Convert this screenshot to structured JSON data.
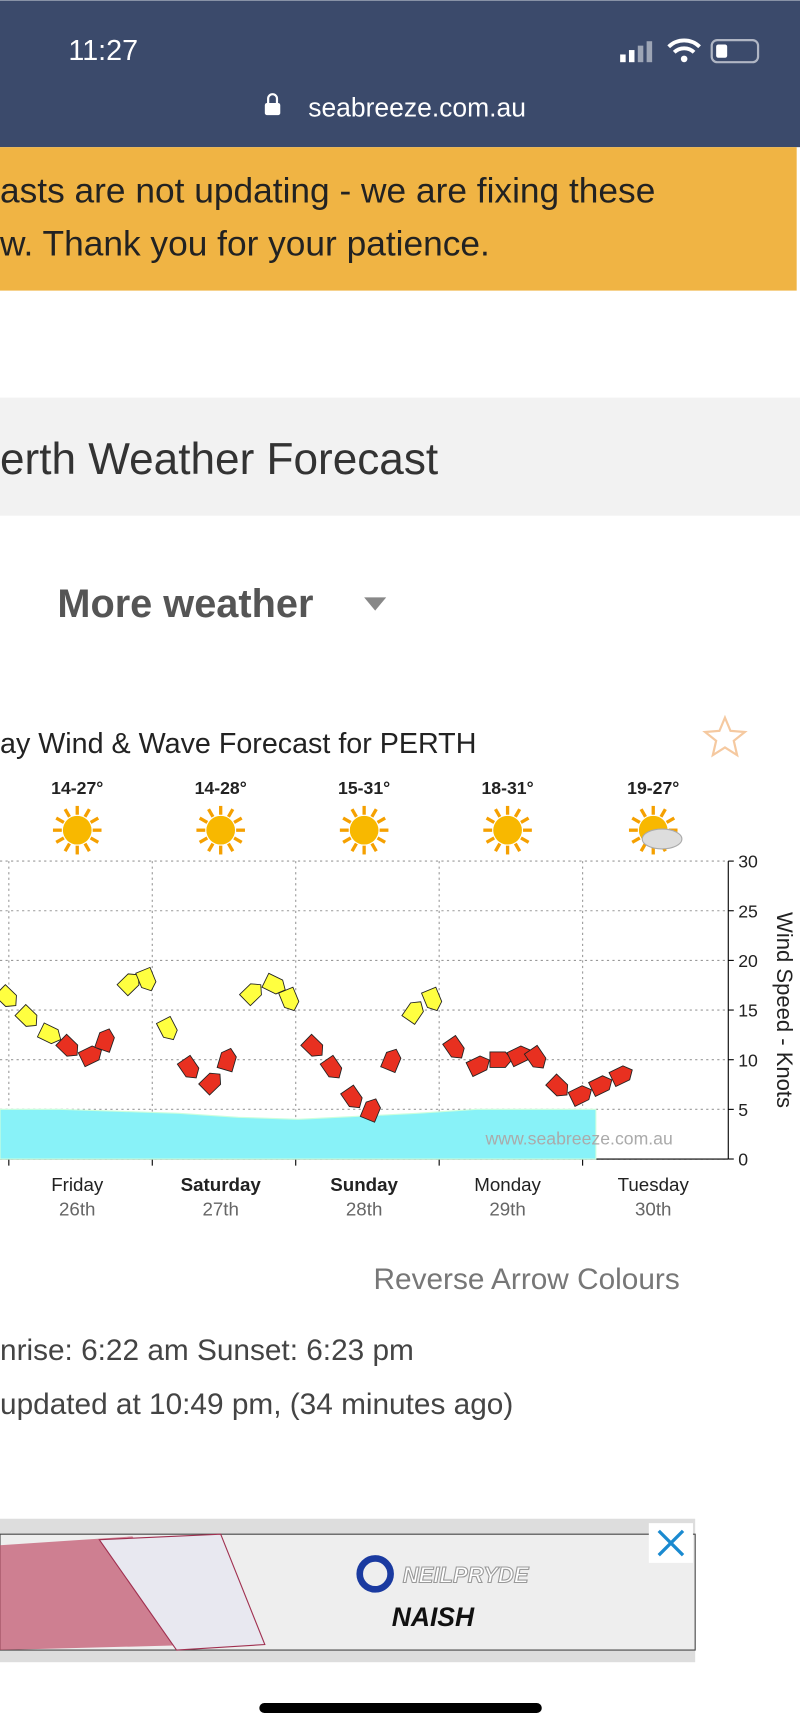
{
  "status_bar": {
    "time": "11:27",
    "url": "seabreeze.com.au"
  },
  "banner": {
    "lines": [
      "asts are not updating - we are fixing these",
      "w.  Thank you for your patience."
    ]
  },
  "page_title": "erth Weather Forecast",
  "menu": "More weather",
  "chart_data": {
    "type": "line",
    "title": "ay Wind & Wave Forecast for PERTH",
    "temperatures": [
      "14-27°",
      "14-28°",
      "15-31°",
      "18-31°",
      "19-27°"
    ],
    "days": [
      [
        "Friday",
        "26th"
      ],
      [
        "Saturday",
        "27th"
      ],
      [
        "Sunday",
        "28th"
      ],
      [
        "Monday",
        "29th"
      ],
      [
        "Tuesday",
        "30th"
      ]
    ],
    "bold_days": [
      false,
      true,
      true,
      false,
      false
    ],
    "y_label": "Wind Speed - Knots",
    "watermark": "www.seabreeze.com.au",
    "ylim": [
      0,
      30
    ],
    "yticks": [
      0,
      5,
      10,
      15,
      20,
      25,
      30
    ],
    "grid": true,
    "series": [
      {
        "values": [
          17,
          15,
          13,
          12,
          10,
          11,
          17,
          19,
          14,
          10,
          7,
          9,
          16,
          18,
          17,
          12,
          10,
          7,
          4,
          9,
          14,
          17,
          12,
          9,
          10,
          10,
          11,
          8,
          6,
          7,
          8
        ],
        "point_colors": [
          "#ffff40",
          "#ffff40",
          "#ffff40",
          "#e83020",
          "#e83020",
          "#e83020",
          "#ffff40",
          "#ffff40",
          "#ffff40",
          "#e83020",
          "#e83020",
          "#e83020",
          "#ffff40",
          "#ffff40",
          "#ffff40",
          "#e83020",
          "#e83020",
          "#e83020",
          "#e83020",
          "#e83020",
          "#ffff40",
          "#ffff40",
          "#e83020",
          "#e83020",
          "#e83020",
          "#e83020",
          "#e83020",
          "#e83020",
          "#e83020",
          "#e83020",
          "#e83020"
        ]
      },
      {
        "values": [
          5,
          5,
          4.8,
          4.6,
          4.2,
          4,
          4.3,
          4.6,
          5,
          5,
          5
        ],
        "color": "#88f2f8",
        "kind": "area"
      }
    ]
  },
  "reverse": "Reverse Arrow Colours",
  "sun": "nrise: 6:22 am  Sunset: 6:23 pm",
  "updated": "updated at 10:49 pm, (34 minutes ago)",
  "ad": {
    "brand1": "NEILPRYDE",
    "brand2": "NAISH"
  }
}
